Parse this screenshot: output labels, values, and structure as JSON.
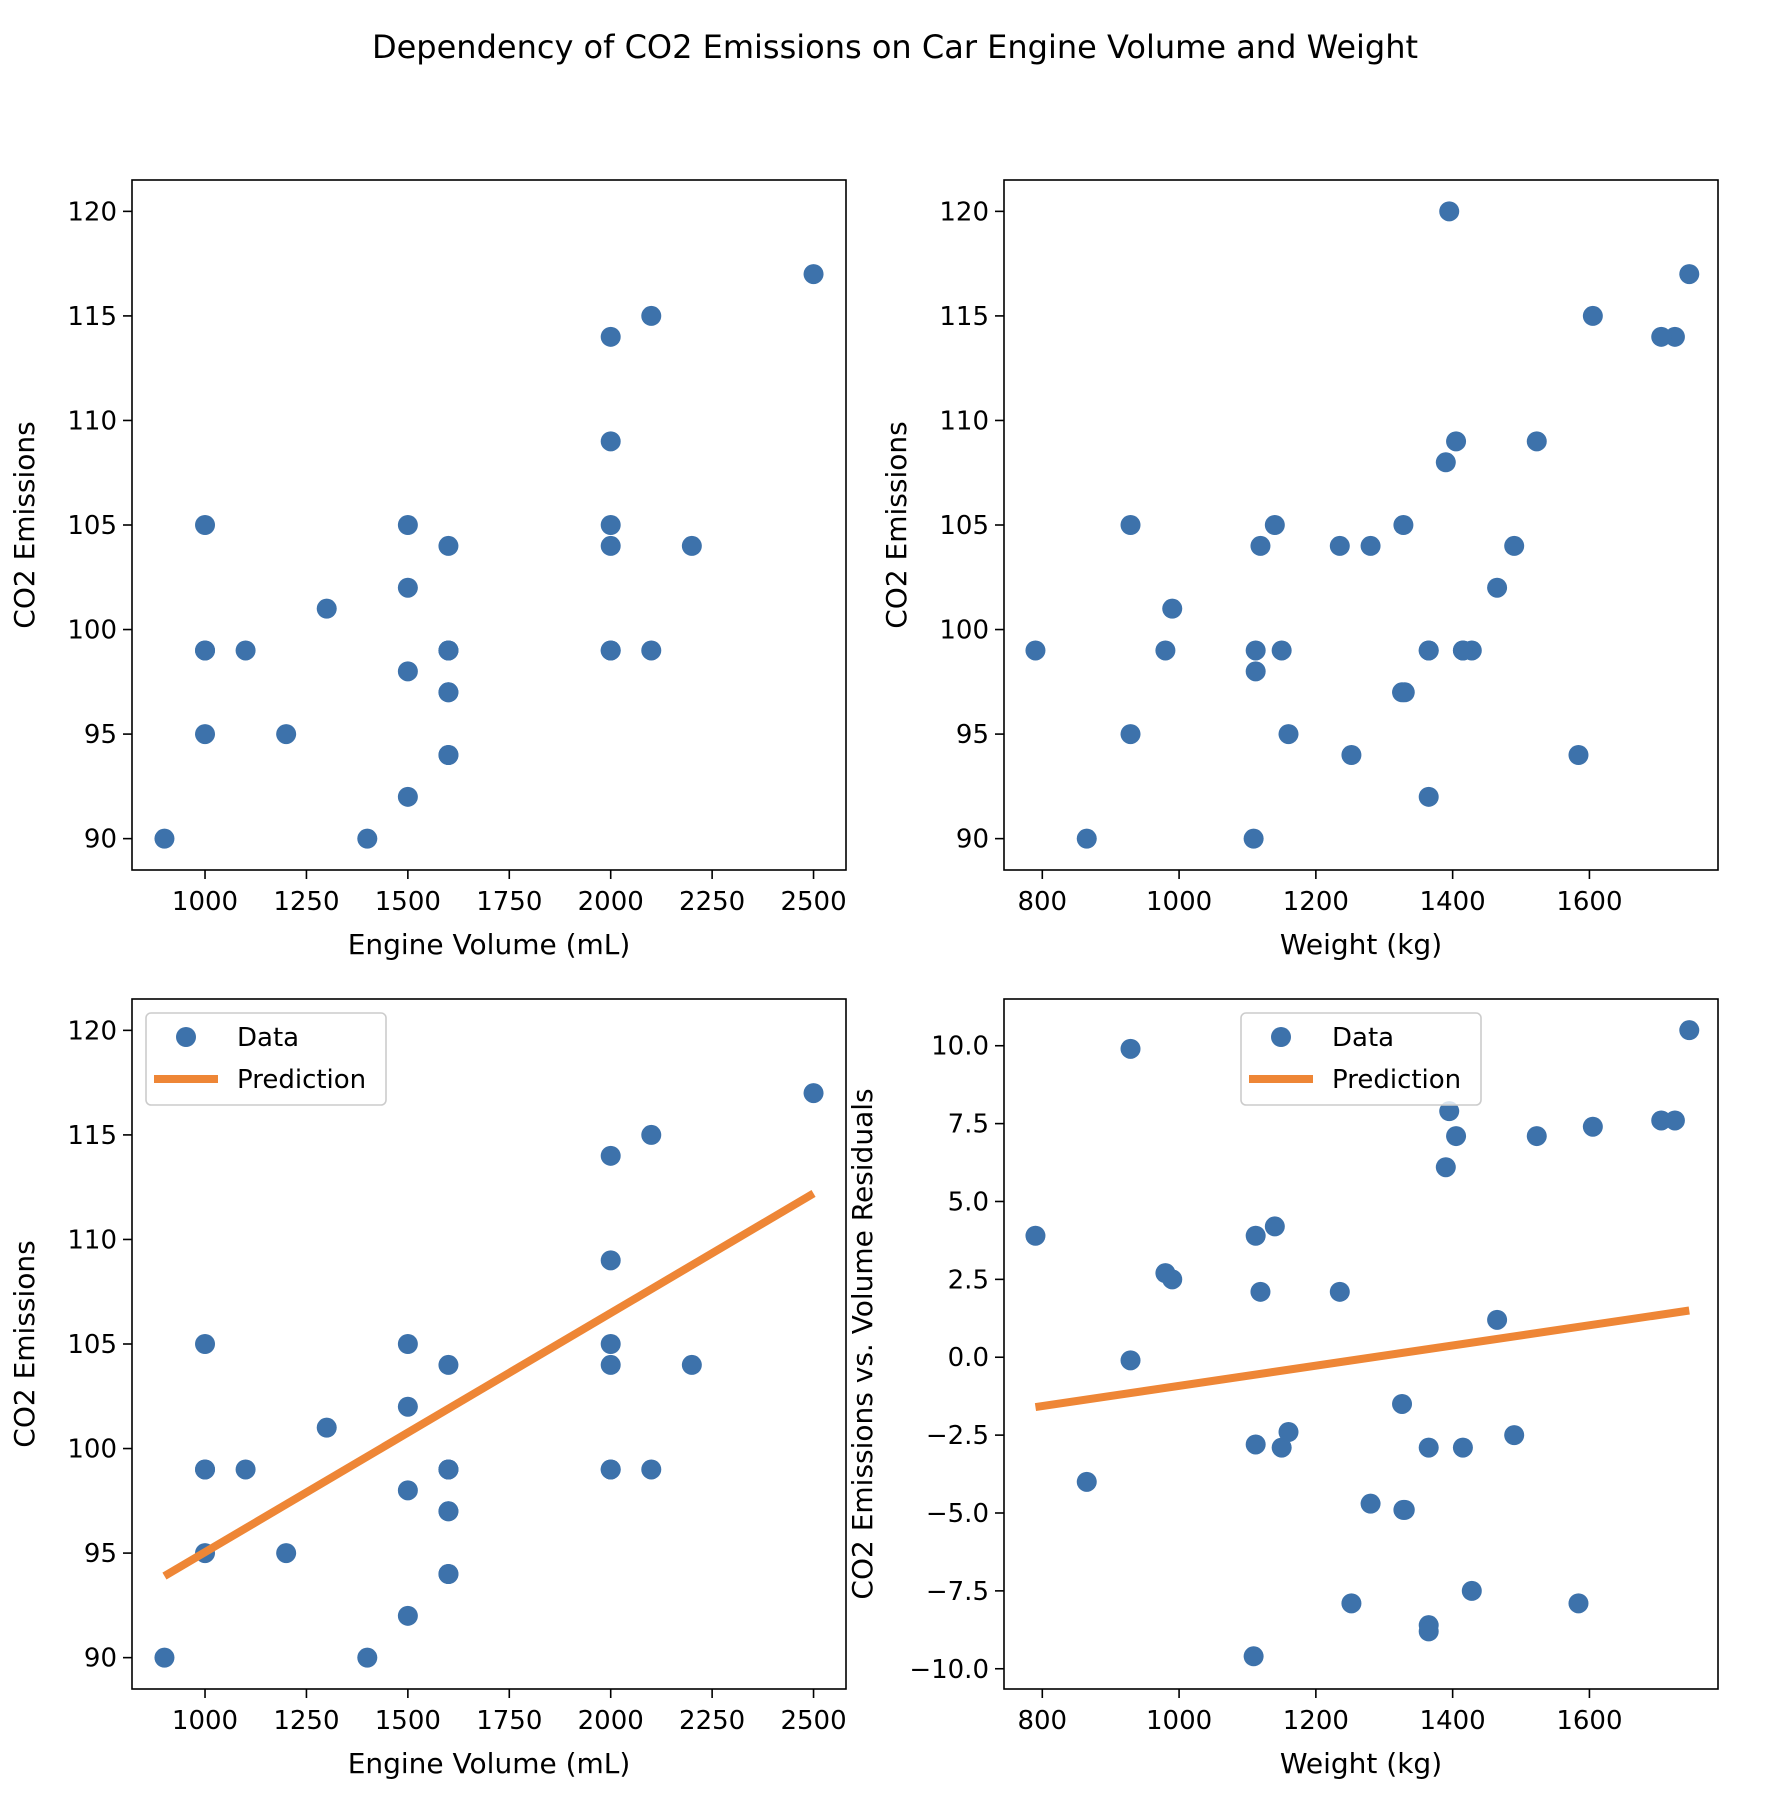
{
  "figure": {
    "title": "Dependency of CO2 Emissions on Car Engine Volume and Weight"
  },
  "colors": {
    "data": "#3d72ab",
    "prediction": "#ee8636"
  },
  "chart_data": [
    {
      "type": "scatter",
      "xlabel": "Engine Volume (mL)",
      "ylabel": "CO2 Emissions",
      "xlim": [
        820,
        2580
      ],
      "ylim": [
        88.5,
        121.5
      ],
      "xticks": [
        1000,
        1250,
        1500,
        1750,
        2000,
        2250,
        2500
      ],
      "yticks": [
        90,
        95,
        100,
        105,
        110,
        115,
        120
      ],
      "xtick_labels": [
        "1000",
        "1250",
        "1500",
        "1750",
        "2000",
        "2250",
        "2500"
      ],
      "ytick_labels": [
        "90",
        "95",
        "100",
        "105",
        "110",
        "115",
        "120"
      ],
      "series": [
        {
          "x": [
            1000,
            1200,
            1000,
            900,
            1500,
            1000,
            1400,
            1500,
            1500,
            1600,
            1100,
            1300,
            1000,
            1600,
            1600,
            1600,
            1600,
            2200,
            1600,
            2000,
            1600,
            2000,
            2100,
            1600,
            2000,
            1500,
            2000,
            2000,
            2000,
            2100,
            2500
          ],
          "y": [
            99,
            95,
            95,
            90,
            105,
            105,
            90,
            92,
            98,
            99,
            99,
            101,
            99,
            94,
            97,
            97,
            99,
            104,
            104,
            105,
            94,
            99,
            99,
            99,
            99,
            102,
            104,
            114,
            109,
            115,
            117
          ],
          "marker": "circle"
        }
      ],
      "legend": null
    },
    {
      "type": "scatter",
      "xlabel": "Weight (kg)",
      "ylabel": "CO2 Emissions",
      "xlim": [
        744,
        1788
      ],
      "ylim": [
        88.5,
        121.5
      ],
      "xticks": [
        800,
        1000,
        1200,
        1400,
        1600
      ],
      "yticks": [
        90,
        95,
        100,
        105,
        110,
        115,
        120
      ],
      "xtick_labels": [
        "800",
        "1000",
        "1200",
        "1400",
        "1600"
      ],
      "ytick_labels": [
        "90",
        "95",
        "100",
        "105",
        "110",
        "115",
        "120"
      ],
      "series": [
        {
          "x": [
            790,
            1160,
            929,
            865,
            1140,
            929,
            1109,
            1365,
            1112,
            1150,
            980,
            990,
            1112,
            1252,
            1326,
            1330,
            1365,
            1280,
            1119,
            1328,
            1584,
            1428,
            1365,
            1415,
            1415,
            1465,
            1490,
            1725,
            1523,
            1705,
            1605,
            1746,
            1235,
            1390,
            1405,
            1395
          ],
          "y": [
            99,
            95,
            95,
            90,
            105,
            105,
            90,
            92,
            98,
            99,
            99,
            101,
            99,
            94,
            97,
            97,
            99,
            104,
            104,
            105,
            94,
            99,
            99,
            99,
            99,
            102,
            104,
            114,
            109,
            114,
            115,
            117,
            104,
            108,
            109,
            120
          ]
        }
      ],
      "legend": null
    },
    {
      "type": "scatter",
      "xlabel": "Engine Volume (mL)",
      "ylabel": "CO2 Emissions",
      "xlim": [
        820,
        2580
      ],
      "ylim": [
        88.5,
        121.5
      ],
      "xticks": [
        1000,
        1250,
        1500,
        1750,
        2000,
        2250,
        2500
      ],
      "yticks": [
        90,
        95,
        100,
        105,
        110,
        115,
        120
      ],
      "xtick_labels": [
        "1000",
        "1250",
        "1500",
        "1750",
        "2000",
        "2250",
        "2500"
      ],
      "ytick_labels": [
        "90",
        "95",
        "100",
        "105",
        "110",
        "115",
        "120"
      ],
      "series": [
        {
          "name": "Data",
          "kind": "scatter",
          "x": [
            1000,
            1200,
            1000,
            900,
            1500,
            1000,
            1400,
            1500,
            1500,
            1600,
            1100,
            1300,
            1000,
            1600,
            1600,
            1600,
            1600,
            2200,
            1600,
            2000,
            1600,
            2000,
            2100,
            1600,
            2000,
            1500,
            2000,
            2000,
            2000,
            2100,
            2500
          ],
          "y": [
            99,
            95,
            95,
            90,
            105,
            105,
            90,
            92,
            98,
            99,
            99,
            101,
            99,
            94,
            97,
            97,
            99,
            104,
            104,
            105,
            94,
            99,
            99,
            99,
            99,
            102,
            104,
            114,
            109,
            115,
            117
          ]
        },
        {
          "name": "Prediction",
          "kind": "line",
          "x": [
            900,
            2500
          ],
          "y": [
            93.9,
            112.2
          ]
        }
      ],
      "legend": {
        "location": "top-left",
        "entries": [
          "Data",
          "Prediction"
        ]
      }
    },
    {
      "type": "scatter",
      "xlabel": "Weight (kg)",
      "ylabel": "CO2 Emissions vs. Volume Residuals",
      "xlim": [
        744,
        1788
      ],
      "ylim": [
        -10.65,
        11.5
      ],
      "xticks": [
        800,
        1000,
        1200,
        1400,
        1600
      ],
      "yticks": [
        -10.0,
        -7.5,
        -5.0,
        -2.5,
        0.0,
        2.5,
        5.0,
        7.5,
        10.0
      ],
      "xtick_labels": [
        "800",
        "1000",
        "1200",
        "1400",
        "1600"
      ],
      "ytick_labels": [
        "−10.0",
        "−7.5",
        "−5.0",
        "−2.5",
        "0.0",
        "2.5",
        "5.0",
        "7.5",
        "10.0"
      ],
      "series": [
        {
          "name": "Data",
          "kind": "scatter",
          "x": [
            790,
            929,
            929,
            865,
            1109,
            1112,
            1119,
            1140,
            980,
            990,
            1112,
            1150,
            1160,
            1235,
            1252,
            1280,
            1326,
            1330,
            1328,
            1365,
            1365,
            1365,
            1390,
            1395,
            1405,
            1415,
            1428,
            1465,
            1490,
            1523,
            1584,
            1605,
            1705,
            1725,
            1746
          ],
          "y": [
            3.9,
            9.9,
            -0.1,
            -4.0,
            -9.6,
            3.9,
            2.1,
            4.2,
            2.7,
            2.5,
            -2.8,
            -2.9,
            -2.4,
            2.1,
            -7.9,
            -4.7,
            -1.5,
            -4.9,
            -4.9,
            -2.9,
            -8.6,
            -8.8,
            6.1,
            7.9,
            7.1,
            -2.9,
            -7.5,
            1.2,
            -2.5,
            7.1,
            -7.9,
            7.4,
            7.6,
            7.6,
            10.5
          ]
        },
        {
          "name": "Prediction",
          "kind": "line",
          "x": [
            790,
            1746
          ],
          "y": [
            -1.6,
            1.5
          ]
        }
      ],
      "legend": {
        "location": "top-center",
        "entries": [
          "Data",
          "Prediction"
        ]
      }
    }
  ]
}
